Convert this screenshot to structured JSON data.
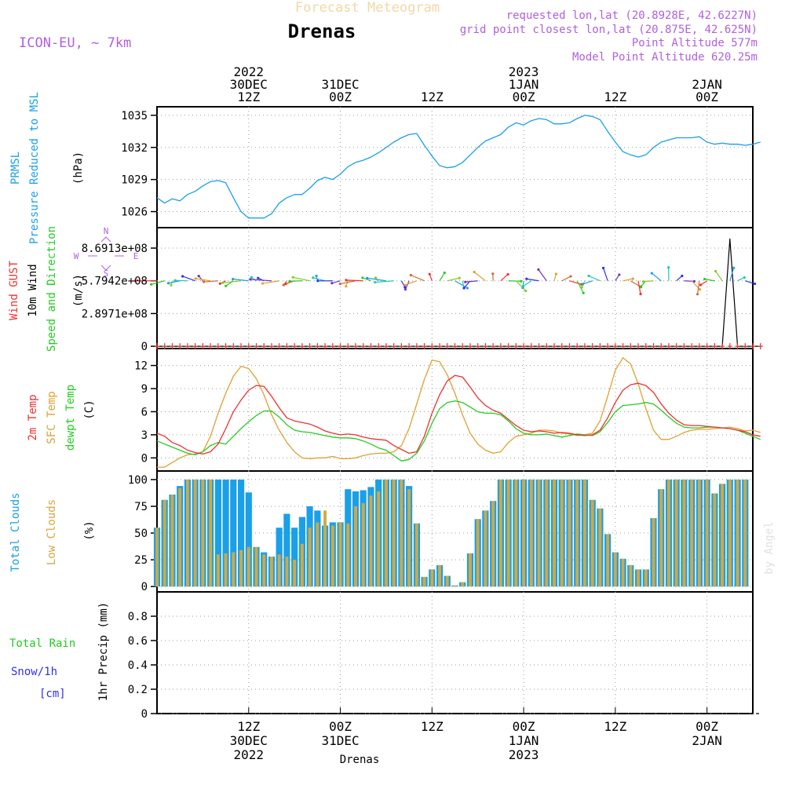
{
  "header": {
    "title_faded": "Forecast Meteogram",
    "location": "Drenas",
    "model": "ICON-EU, ~ 7km",
    "requested": "requested lon,lat (20.8928E, 42.6227N)",
    "grid_point": "grid point closest lon,lat (20.875E, 42.625N)",
    "point_altitude": "Point Altitude 577m",
    "model_altitude": "Model Point Altitude 620.25m",
    "footer_location": "Drenas",
    "watermark": "by Angel"
  },
  "colors": {
    "pressure": "#1aa0e8",
    "gust": "#ee3030",
    "wind": "#000000",
    "temp2m": "#ee3030",
    "sfc_temp": "#e0a030",
    "dewpoint": "#22cc22",
    "total_clouds": "#1aa0e8",
    "low_clouds": "#d4a840",
    "purple": "#b060e0",
    "precip_rain": "#22cc22",
    "precip_snow": "#3030ee"
  },
  "time_axis": {
    "top_labels": [
      {
        "t": 12,
        "lines": [
          "2022",
          "30DEC",
          "12Z"
        ]
      },
      {
        "t": 24,
        "lines": [
          "31DEC",
          "00Z"
        ]
      },
      {
        "t": 36,
        "lines": [
          "12Z"
        ]
      },
      {
        "t": 48,
        "lines": [
          "2023",
          "1JAN",
          "00Z"
        ]
      },
      {
        "t": 60,
        "lines": [
          "12Z"
        ]
      },
      {
        "t": 72,
        "lines": [
          "2JAN",
          "00Z"
        ]
      }
    ],
    "bottom_labels": [
      {
        "t": 12,
        "lines": [
          "12Z",
          "30DEC",
          "2022"
        ]
      },
      {
        "t": 24,
        "lines": [
          "00Z",
          "31DEC"
        ]
      },
      {
        "t": 36,
        "lines": [
          "12Z"
        ]
      },
      {
        "t": 48,
        "lines": [
          "00Z",
          "1JAN",
          "2023"
        ]
      },
      {
        "t": 60,
        "lines": [
          "12Z"
        ]
      },
      {
        "t": 72,
        "lines": [
          "00Z",
          "2JAN"
        ]
      }
    ]
  },
  "chart_data": [
    {
      "type": "line",
      "panel": "pressure",
      "ylabel_lines": [
        "PRMSL",
        "Pressure Reduced to MSL"
      ],
      "unit": "(hPa)",
      "yticks": [
        1026,
        1029,
        1032,
        1035
      ],
      "ylim": [
        1024.5,
        1035.8
      ],
      "grid": true,
      "x_start": 0,
      "x_step": 1,
      "series": [
        {
          "values": [
            1027.3,
            1026.8,
            1027.2,
            1027.0,
            1027.6,
            1027.9,
            1028.4,
            1028.8,
            1028.9,
            1028.7,
            1027.3,
            1026.0,
            1025.4,
            1025.4,
            1025.4,
            1025.8,
            1026.8,
            1027.3,
            1027.6,
            1027.6,
            1028.2,
            1028.9,
            1029.2,
            1029.0,
            1029.5,
            1030.2,
            1030.6,
            1030.8,
            1031.1,
            1031.5,
            1032.0,
            1032.5,
            1032.9,
            1033.2,
            1033.3,
            1032.2,
            1031.2,
            1030.3,
            1030.1,
            1030.2,
            1030.6,
            1031.3,
            1032.0,
            1032.6,
            1032.9,
            1033.2,
            1033.9,
            1034.3,
            1034.1,
            1034.5,
            1034.7,
            1034.6,
            1034.2,
            1034.2,
            1034.3,
            1034.7,
            1035.0,
            1034.9,
            1034.6,
            1033.5,
            1032.5,
            1031.6,
            1031.3,
            1031.1,
            1031.3,
            1032.0,
            1032.5,
            1032.7,
            1032.9,
            1032.9,
            1032.9,
            1033.0,
            1032.5,
            1032.3,
            1032.4,
            1032.3,
            1032.3,
            1032.2,
            1032.3,
            1032.5
          ]
        }
      ]
    },
    {
      "type": "line",
      "panel": "wind",
      "ylabel_lines": [
        "Wind GUST",
        "10m Wind",
        "Speed and Direction"
      ],
      "unit": "(m/s)",
      "ytick_labels": [
        {
          "label": "8.6913e+08",
          "v": 8.6913
        },
        {
          "label": "5.7942e+08",
          "v": 5.7942
        },
        {
          "label": "2.8971e+08",
          "v": 2.8971
        },
        {
          "label": "0",
          "v": 0
        }
      ],
      "ylim": [
        -0.2,
        10.5
      ],
      "compass": {
        "n": "N",
        "s": "S",
        "w": "W",
        "e": "E"
      },
      "grid": true,
      "x_start": 0,
      "x_step": 1,
      "series": [
        {
          "name": "Wind GUST",
          "values": [
            0,
            0,
            0,
            0,
            0,
            0,
            0,
            0,
            0,
            0,
            0,
            0,
            0,
            0,
            0,
            0,
            0,
            0,
            0,
            0,
            0,
            0,
            0,
            0,
            0,
            0,
            0,
            0,
            0,
            0,
            0,
            0,
            0,
            0,
            0,
            0,
            0,
            0,
            0,
            0,
            0,
            0,
            0,
            0,
            0,
            0,
            0,
            0,
            0,
            0,
            0,
            0,
            0,
            0,
            0,
            0,
            0,
            0,
            0,
            0,
            0,
            0,
            0,
            0,
            0,
            0,
            0,
            0,
            0,
            0,
            0,
            0,
            0,
            0,
            0,
            0,
            0,
            0,
            0,
            0
          ]
        },
        {
          "name": "10m Wind",
          "values": [
            0,
            0,
            0,
            0,
            0,
            0,
            0,
            0,
            0,
            0,
            0,
            0,
            0,
            0,
            0,
            0,
            0,
            0,
            0,
            0,
            0,
            0,
            0,
            0,
            0,
            0,
            0,
            0,
            0,
            0,
            0,
            0,
            0,
            0,
            0,
            0,
            0,
            0,
            0,
            0,
            0,
            0,
            0,
            0,
            0,
            0,
            0,
            0,
            0,
            0,
            0,
            0,
            0,
            0,
            0,
            0,
            0,
            0,
            0,
            0,
            0,
            0,
            0,
            0,
            0,
            0,
            0,
            0,
            0,
            0,
            0,
            0,
            0,
            0,
            0,
            9.5,
            0,
            0,
            0,
            0
          ]
        }
      ]
    },
    {
      "type": "line",
      "panel": "temperature",
      "ylabel_lines": [
        "2m Temp",
        "SFC Temp",
        "dewpt Temp"
      ],
      "unit": "(C)",
      "yticks": [
        0,
        3,
        6,
        9,
        12
      ],
      "ylim": [
        -1.7,
        14.2
      ],
      "grid": true,
      "x_start": 0,
      "x_step": 1,
      "series": [
        {
          "name": "2m Temp",
          "values": [
            3.2,
            2.8,
            2.0,
            1.6,
            1.0,
            0.7,
            0.5,
            0.8,
            1.8,
            3.8,
            6.0,
            7.5,
            8.8,
            9.4,
            9.3,
            8.0,
            6.5,
            5.2,
            4.8,
            4.6,
            4.4,
            4.0,
            3.5,
            3.2,
            3.0,
            3.1,
            3.0,
            2.7,
            2.5,
            2.4,
            2.3,
            1.6,
            1.1,
            0.6,
            0.8,
            2.8,
            5.8,
            8.2,
            10.0,
            10.7,
            10.5,
            9.2,
            7.8,
            6.8,
            6.2,
            5.8,
            5.0,
            4.2,
            3.6,
            3.4,
            3.5,
            3.4,
            3.2,
            3.3,
            3.2,
            3.0,
            2.9,
            3.0,
            3.6,
            5.2,
            7.2,
            8.8,
            9.5,
            9.7,
            9.4,
            8.5,
            7.0,
            5.8,
            4.9,
            4.3,
            4.2,
            4.2,
            4.1,
            4.0,
            3.9,
            3.8,
            3.6,
            3.4,
            3.0,
            2.8
          ]
        },
        {
          "name": "SFC Temp",
          "values": [
            -1.2,
            -1.2,
            -0.6,
            0.0,
            0.4,
            0.5,
            0.8,
            2.8,
            5.8,
            8.4,
            10.6,
            11.9,
            11.6,
            10.3,
            8.2,
            5.6,
            3.6,
            2.0,
            0.8,
            0.0,
            -0.1,
            0.0,
            0.0,
            0.2,
            -0.1,
            -0.1,
            0.0,
            0.3,
            0.5,
            0.6,
            0.6,
            0.8,
            1.6,
            3.8,
            7.0,
            10.2,
            12.7,
            12.5,
            10.8,
            8.4,
            5.6,
            3.2,
            1.8,
            1.0,
            0.6,
            0.8,
            2.0,
            2.8,
            3.0,
            3.2,
            3.6,
            3.6,
            3.5,
            3.2,
            3.1,
            2.9,
            3.0,
            3.2,
            4.8,
            8.0,
            11.4,
            13.0,
            12.2,
            9.6,
            6.4,
            3.6,
            2.4,
            2.4,
            2.8,
            3.3,
            3.6,
            3.7,
            3.7,
            3.8,
            3.9,
            4.0,
            3.8,
            3.5,
            3.6,
            3.3
          ]
        },
        {
          "name": "dewpt Temp",
          "values": [
            2.2,
            1.8,
            1.4,
            1.0,
            0.6,
            0.4,
            0.8,
            1.6,
            2.0,
            1.8,
            2.8,
            3.8,
            4.7,
            5.5,
            6.1,
            6.1,
            5.3,
            4.3,
            3.6,
            3.4,
            3.3,
            3.1,
            2.9,
            2.7,
            2.6,
            2.6,
            2.5,
            2.2,
            1.8,
            1.3,
            1.0,
            0.3,
            -0.4,
            -0.2,
            0.6,
            2.2,
            4.5,
            6.4,
            7.2,
            7.4,
            7.2,
            6.6,
            6.0,
            5.8,
            5.8,
            5.6,
            4.8,
            3.8,
            3.2,
            3.0,
            3.0,
            3.1,
            2.9,
            2.7,
            2.9,
            3.1,
            3.0,
            2.9,
            3.4,
            4.6,
            6.0,
            6.8,
            6.9,
            7.0,
            7.2,
            7.0,
            6.2,
            5.3,
            4.5,
            4.0,
            3.9,
            3.9,
            4.0,
            4.0,
            3.9,
            3.8,
            3.6,
            3.2,
            2.8,
            2.4
          ]
        }
      ]
    },
    {
      "type": "bar",
      "panel": "clouds",
      "ylabel_lines": [
        "Total Clouds",
        "Low Clouds"
      ],
      "unit": "(%)",
      "yticks": [
        0,
        25,
        50,
        75,
        100
      ],
      "ylim": [
        -5,
        108
      ],
      "grid": true,
      "x_start": 0,
      "x_step": 1,
      "series": [
        {
          "name": "Total Clouds",
          "values": [
            55,
            81,
            86,
            94,
            100,
            100,
            100,
            100,
            100,
            100,
            100,
            100,
            88,
            37,
            32,
            28,
            55,
            68,
            55,
            65,
            75,
            71,
            57,
            60,
            60,
            91,
            89,
            90,
            93,
            100,
            100,
            100,
            100,
            94,
            59,
            9,
            16,
            20,
            10,
            1,
            4,
            31,
            63,
            71,
            80,
            100,
            100,
            100,
            100,
            100,
            100,
            100,
            100,
            100,
            100,
            100,
            100,
            81,
            73,
            49,
            32,
            26,
            20,
            16,
            16,
            64,
            91,
            100,
            100,
            100,
            100,
            100,
            100,
            87,
            96,
            100,
            100,
            100
          ]
        },
        {
          "name": "Low Clouds",
          "values": [
            55,
            81,
            86,
            92,
            100,
            100,
            100,
            100,
            30,
            31,
            32,
            34,
            37,
            37,
            30,
            28,
            30,
            28,
            25,
            40,
            55,
            60,
            71,
            57,
            60,
            59,
            75,
            78,
            85,
            89,
            100,
            100,
            100,
            91,
            59,
            9,
            16,
            20,
            10,
            1,
            4,
            31,
            63,
            71,
            80,
            100,
            100,
            100,
            100,
            100,
            100,
            100,
            100,
            100,
            100,
            100,
            100,
            81,
            73,
            49,
            32,
            26,
            20,
            16,
            16,
            64,
            91,
            100,
            100,
            100,
            100,
            100,
            100,
            87,
            96,
            100,
            100,
            100
          ]
        }
      ]
    },
    {
      "type": "line",
      "panel": "precip",
      "ylabel_lines": [
        "Total Rain",
        "Snow/1h",
        "[cm]"
      ],
      "unit": "1hr Precip (mm)",
      "yticks": [
        0,
        0.2,
        0.4,
        0.6,
        0.8
      ],
      "ylim": [
        0,
        1.0
      ],
      "grid": true,
      "x_start": 0,
      "x_step": 1,
      "series": [
        {
          "name": "Total Rain",
          "values": [
            0,
            0,
            0,
            0,
            0,
            0,
            0,
            0,
            0,
            0,
            0,
            0,
            0,
            0,
            0,
            0,
            0,
            0,
            0,
            0,
            0,
            0,
            0,
            0,
            0,
            0,
            0,
            0,
            0,
            0,
            0,
            0,
            0,
            0,
            0,
            0,
            0,
            0,
            0,
            0,
            0,
            0,
            0,
            0,
            0,
            0,
            0,
            0,
            0,
            0,
            0,
            0,
            0,
            0,
            0,
            0,
            0,
            0,
            0,
            0,
            0,
            0,
            0,
            0,
            0,
            0,
            0,
            0,
            0,
            0,
            0,
            0,
            0,
            0,
            0,
            0,
            0,
            0,
            0,
            0
          ]
        }
      ]
    }
  ]
}
